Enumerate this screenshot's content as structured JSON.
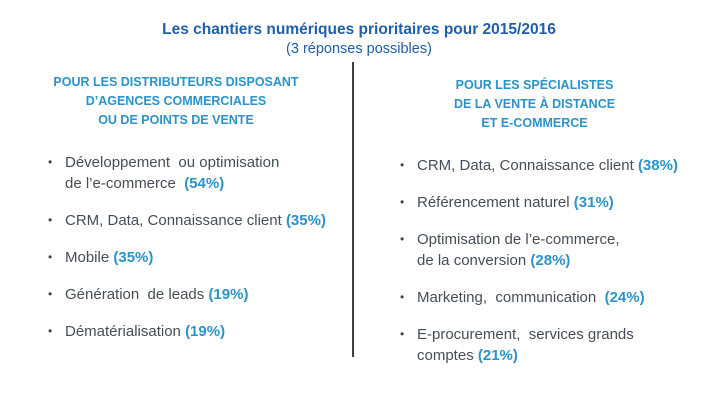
{
  "title": {
    "line1": "Les chantiers numériques prioritaires pour 2015/2016",
    "line2": "(3 réponses possibles)"
  },
  "bullet_glyph": "•",
  "colors": {
    "background": "#FFFFFF",
    "title_blue": "#1F5FA8",
    "accent_blue": "#2A93CB",
    "body_text": "#454E58",
    "divider": "#3F3F3F"
  },
  "left_column": {
    "header": "POUR LES DISTRIBUTEURS DISPOSANT\nD’AGENCES COMMERCIALES\nOU DE POINTS DE VENTE",
    "items": [
      {
        "text": "Développement  ou optimisation\nde l’e-commerce  ",
        "pct": "(54%)"
      },
      {
        "text": "CRM, Data, Connaissance client ",
        "pct": "(35%)"
      },
      {
        "text": "Mobile ",
        "pct": "(35%)"
      },
      {
        "text": "Génération  de leads ",
        "pct": "(19%)"
      },
      {
        "text": "Dématérialisation ",
        "pct": "(19%)"
      }
    ]
  },
  "right_column": {
    "header": "POUR LES SPÉCIALISTES\nDE LA VENTE À DISTANCE\nET E-COMMERCE",
    "items": [
      {
        "text": "CRM, Data, Connaissance client ",
        "pct": "(38%)"
      },
      {
        "text": "Référencement naturel ",
        "pct": "(31%)"
      },
      {
        "text": "Optimisation de l’e-commerce,\nde la conversion ",
        "pct": "(28%)"
      },
      {
        "text": "Marketing,  communication  ",
        "pct": "(24%)"
      },
      {
        "text": "E-procurement,  services grands\ncomptes ",
        "pct": "(21%)"
      }
    ]
  }
}
